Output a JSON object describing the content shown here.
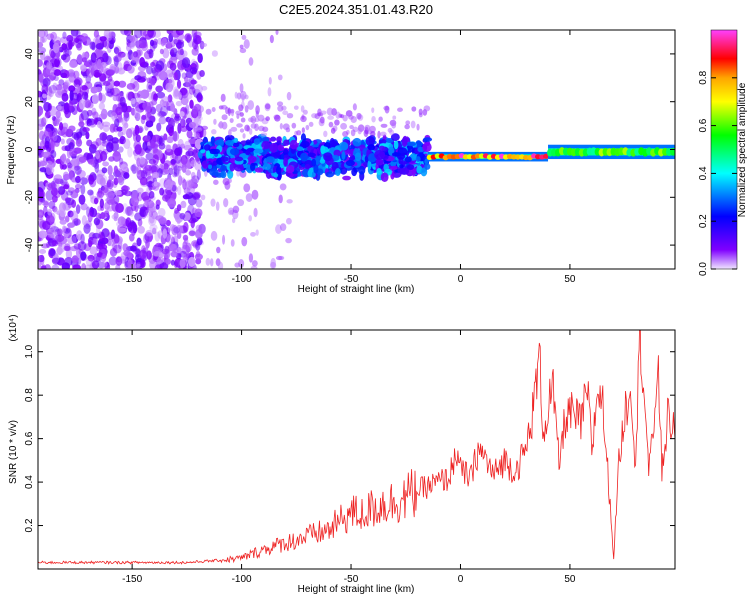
{
  "title": "C2E5.2024.351.01.43.R20",
  "chart_data": [
    {
      "type": "heatmap",
      "title": "C2E5.2024.351.01.43.R20",
      "xlabel": "Height of straight line (km)",
      "ylabel": "Frequency (Hz)",
      "xlim": [
        -193,
        98
      ],
      "ylim": [
        -50,
        50
      ],
      "xticks": [
        -150,
        -100,
        -50,
        0,
        50
      ],
      "yticks": [
        -40,
        -20,
        0,
        20,
        40
      ],
      "colorbar": {
        "label": "Normalized spectral amplitude",
        "range": [
          0,
          1
        ],
        "ticks": [
          0.0,
          0.2,
          0.4,
          0.6,
          0.8
        ],
        "tick_labels": [
          "0.0",
          "0.2",
          "0.4",
          "0.6",
          "0.8"
        ],
        "colormap": [
          "#ff40ff",
          "#ff0000",
          "#ffa500",
          "#ffff00",
          "#00ff00",
          "#00ffff",
          "#0000ff",
          "#8000ff",
          "#f0e6ff"
        ]
      },
      "regions": [
        {
          "x_range": [
            -193,
            -118
          ],
          "y_range": [
            -50,
            50
          ],
          "amplitude": 0.07,
          "pattern": "scattered noise"
        },
        {
          "x_range": [
            -118,
            -15
          ],
          "y_center": -3,
          "y_halfwidth": 9,
          "amplitude": 0.2,
          "pattern": "noisy band"
        },
        {
          "x_range": [
            -15,
            40
          ],
          "y_center": -3,
          "y_halfwidth": 2,
          "amplitude": 0.9,
          "pattern": "narrow line"
        },
        {
          "x_range": [
            40,
            98
          ],
          "y_center": -1,
          "y_halfwidth": 3,
          "amplitude": 0.6,
          "pattern": "narrow line"
        }
      ]
    },
    {
      "type": "line",
      "xlabel": "Height of straight line (km)",
      "ylabel": "SNR (10 * v/v)",
      "y_multiplier": "(x10⁴)",
      "xlim": [
        -193,
        98
      ],
      "ylim": [
        0,
        1.1
      ],
      "xticks": [
        -150,
        -100,
        -50,
        0,
        50
      ],
      "yticks": [
        0.2,
        0.4,
        0.6,
        0.8,
        1.0
      ],
      "ytick_labels": [
        "0.2",
        "0.4",
        "0.6",
        "0.8",
        "1.0"
      ],
      "series": [
        {
          "color": "#ee2222",
          "x": [
            -193,
            -175,
            -150,
            -125,
            -110,
            -100,
            -90,
            -80,
            -70,
            -60,
            -55,
            -50,
            -45,
            -40,
            -35,
            -30,
            -25,
            -20,
            -15,
            -10,
            -5,
            -2,
            0,
            5,
            8,
            12,
            15,
            20,
            25,
            30,
            33,
            36,
            38,
            40,
            42,
            45,
            48,
            50,
            55,
            58,
            60,
            63,
            65,
            68,
            70,
            72,
            75,
            78,
            80,
            82,
            84,
            86,
            88,
            90,
            92,
            95,
            98
          ],
          "y": [
            0.03,
            0.03,
            0.03,
            0.03,
            0.04,
            0.05,
            0.09,
            0.12,
            0.15,
            0.18,
            0.22,
            0.26,
            0.25,
            0.28,
            0.3,
            0.31,
            0.33,
            0.36,
            0.38,
            0.4,
            0.42,
            0.55,
            0.45,
            0.42,
            0.55,
            0.5,
            0.43,
            0.5,
            0.45,
            0.55,
            0.72,
            0.97,
            0.62,
            0.75,
            0.85,
            0.48,
            0.7,
            0.72,
            0.67,
            0.82,
            0.55,
            0.85,
            0.75,
            0.35,
            0.05,
            0.45,
            0.72,
            0.85,
            0.48,
            1.1,
            0.82,
            0.45,
            0.6,
            0.98,
            0.45,
            0.72,
            0.6
          ]
        }
      ]
    }
  ]
}
